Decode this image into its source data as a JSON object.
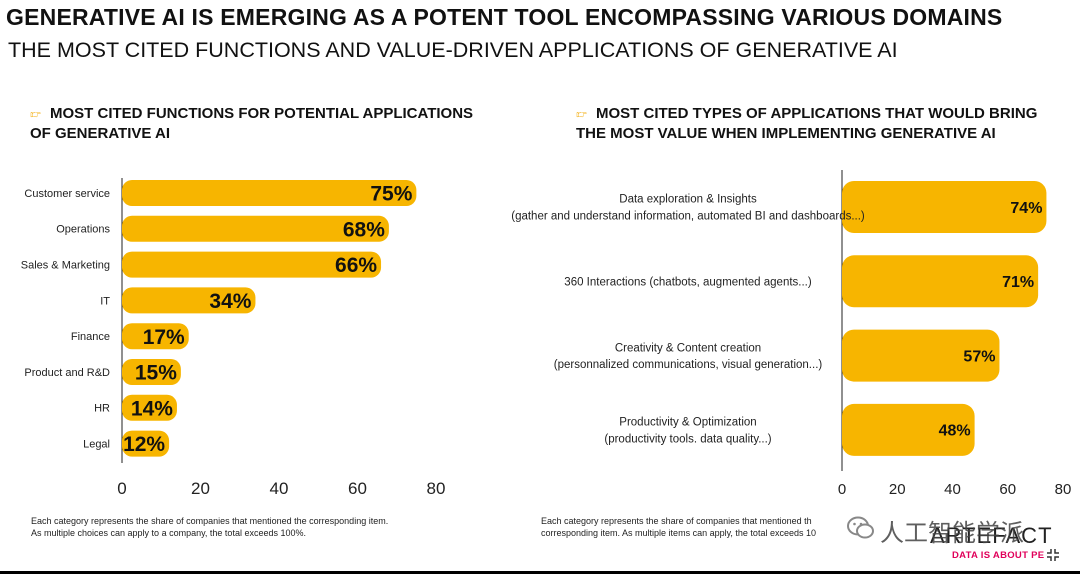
{
  "header": {
    "title": "GENERATIVE AI IS EMERGING AS A POTENT TOOL ENCOMPASSING VARIOUS DOMAINS",
    "subtitle": "THE MOST CITED FUNCTIONS AND VALUE-DRIVEN APPLICATIONS OF GENERATIVE AI"
  },
  "left_section": {
    "heading_line1": "MOST CITED FUNCTIONS FOR POTENTIAL APPLICATIONS",
    "heading_line2": "OF GENERATIVE AI",
    "footnote_line1": "Each category represents the share of companies that mentioned the corresponding item.",
    "footnote_line2": "As multiple choices can apply to a company, the total exceeds 100%."
  },
  "right_section": {
    "heading_line1": "MOST CITED TYPES OF APPLICATIONS THAT WOULD BRING",
    "heading_line2": "THE MOST VALUE WHEN IMPLEMENTING GENERATIVE AI",
    "footnote_line1": "Each category represents the share of companies that mentioned th",
    "footnote_line2": "corresponding item. As multiple items can apply, the total exceeds 10"
  },
  "watermark": {
    "brand": "ARTEFACT",
    "tagline": "DATA IS ABOUT PE",
    "chinese": "人工智能学派"
  },
  "colors": {
    "bar": "#f7b500",
    "axis": "#222222"
  },
  "chart_data": [
    {
      "type": "bar",
      "orientation": "horizontal",
      "title": "MOST CITED FUNCTIONS FOR POTENTIAL APPLICATIONS OF GENERATIVE AI",
      "categories": [
        "Customer service",
        "Operations",
        "Sales & Marketing",
        "IT",
        "Finance",
        "Product and R&D",
        "HR",
        "Legal"
      ],
      "values": [
        75,
        68,
        66,
        34,
        17,
        15,
        14,
        12
      ],
      "value_labels": [
        "75%",
        "68%",
        "66%",
        "34%",
        "17%",
        "15%",
        "14%",
        "12%"
      ],
      "xlim": [
        0,
        80
      ],
      "xticks": [
        "0",
        "20",
        "40",
        "60",
        "80"
      ],
      "xlabel": "",
      "ylabel": "",
      "grid": false
    },
    {
      "type": "bar",
      "orientation": "horizontal",
      "title": "MOST CITED TYPES OF APPLICATIONS THAT WOULD BRING THE MOST VALUE WHEN IMPLEMENTING GENERATIVE AI",
      "categories": [
        [
          "Data exploration & Insights",
          "(gather and understand information, automated BI and dashboards...)"
        ],
        [
          "360 Interactions  (chatbots, augmented agents...)"
        ],
        [
          "Creativity & Content creation",
          "(personnalized communications, visual generation...)"
        ],
        [
          "Productivity & Optimization",
          "(productivity tools. data quality...)"
        ]
      ],
      "values": [
        74,
        71,
        57,
        48
      ],
      "value_labels": [
        "74%",
        "71%",
        "57%",
        "48%"
      ],
      "xlim": [
        0,
        80
      ],
      "xticks": [
        "0",
        "20",
        "40",
        "60",
        "80"
      ],
      "xlabel": "",
      "ylabel": "",
      "grid": false
    }
  ]
}
